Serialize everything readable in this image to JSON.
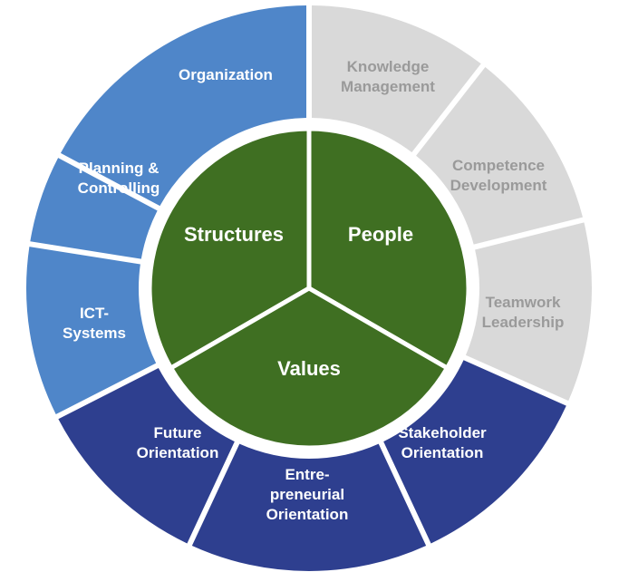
{
  "colors": {
    "structures_ring": "#4f86c9",
    "people_ring": "#d9d9d9",
    "values_ring": "#2e3f8f",
    "core": "#3f6f22",
    "core_text": "#ffffff",
    "light_ring_text": "#9a9a9a",
    "dark_ring_text": "#ffffff",
    "separator": "#ffffff"
  },
  "core": {
    "sectors": [
      {
        "label": "Structures"
      },
      {
        "label": "People"
      },
      {
        "label": "Values"
      }
    ]
  },
  "ring": {
    "segments": [
      {
        "id": "organization",
        "group": "structures",
        "lines": [
          "Organization"
        ]
      },
      {
        "id": "knowledge-management",
        "group": "people",
        "lines": [
          "Knowledge",
          "Management"
        ]
      },
      {
        "id": "competence-development",
        "group": "people",
        "lines": [
          "Competence",
          "Development"
        ]
      },
      {
        "id": "teamwork-leadership",
        "group": "people",
        "lines": [
          "Teamwork",
          "Leadership"
        ]
      },
      {
        "id": "stakeholder-orientation",
        "group": "values",
        "lines": [
          "Stakeholder",
          "Orientation"
        ]
      },
      {
        "id": "entrepreneurial-orientation",
        "group": "values",
        "lines": [
          "Entre-",
          "preneurial",
          "Orientation"
        ]
      },
      {
        "id": "future-orientation",
        "group": "values",
        "lines": [
          "Future",
          "Orientation"
        ]
      },
      {
        "id": "ict-systems",
        "group": "structures",
        "lines": [
          "ICT-",
          "Systems"
        ]
      },
      {
        "id": "planning-controlling",
        "group": "structures",
        "lines": [
          "Planning &",
          "Controlling"
        ]
      }
    ]
  }
}
